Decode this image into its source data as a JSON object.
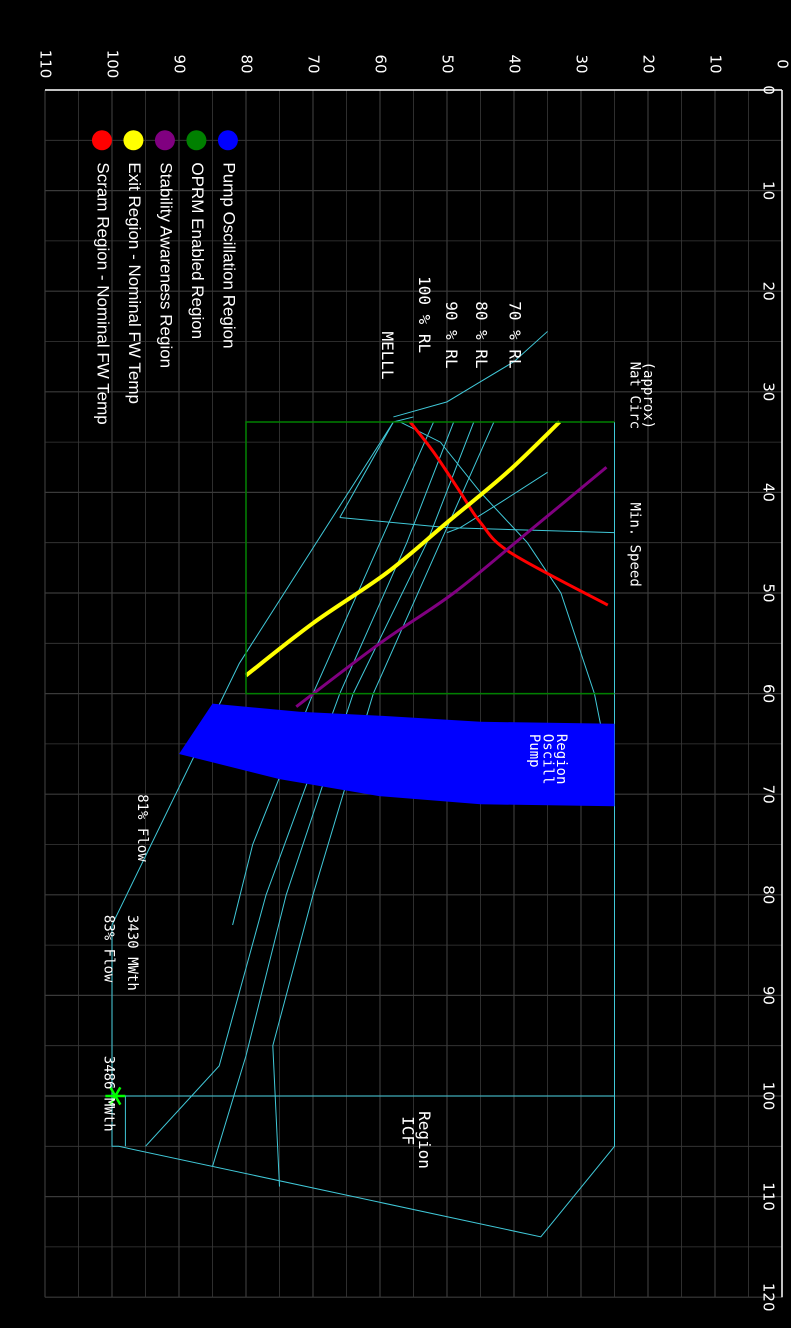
{
  "chart_data": {
    "type": "line",
    "x_axis": {
      "range": [
        0,
        120
      ],
      "ticks": [
        0,
        10,
        20,
        30,
        40,
        50,
        60,
        70,
        80,
        90,
        100,
        110,
        120
      ]
    },
    "y_axis": {
      "range": [
        0,
        110
      ],
      "ticks": [
        0,
        10,
        20,
        30,
        40,
        50,
        60,
        70,
        80,
        90,
        100,
        110
      ]
    },
    "grid": true,
    "legend_position": "top-right",
    "colors": {
      "grid": "#3a3a3a",
      "boundary": "#40c8d8",
      "scram": "#ff0000",
      "exit": "#ffff00",
      "stability": "#800080",
      "oprm": "#008000",
      "pump": "#0000ff",
      "marker": "#00ff00"
    },
    "legend": [
      {
        "label": "Scram Region - Nominal FW Temp",
        "color": "#ff0000"
      },
      {
        "label": "Exit Region - Nominal FW Temp",
        "color": "#ffff00"
      },
      {
        "label": "Stability Awareness Region",
        "color": "#800080"
      },
      {
        "label": "OPRM Enabled Region",
        "color": "#008000"
      },
      {
        "label": "Pump Oscillation Region",
        "color": "#0000ff"
      }
    ],
    "annotations": {
      "melll": "MELLL",
      "rl100": "100 % RL",
      "rl90": "90 % RL",
      "rl80": "80 % RL",
      "rl70": "70 % RL",
      "nat_circ_1": "Nat Circ",
      "nat_circ_2": "(approx)",
      "min_speed": "Min. Speed",
      "pump_1": "Pump",
      "pump_2": "Oscill",
      "pump_3": "Region",
      "icf_1": "ICF",
      "icf_2": "Region",
      "flow81": "81% Flow",
      "flow83": "83% Flow",
      "mwth3430": "3430 MWth",
      "mwth3486": "3486 MWth"
    },
    "series": [
      {
        "name": "Scram Region - Nominal FW Temp",
        "x": [
          33.0,
          36,
          40,
          43,
          46,
          51.2
        ],
        "y": [
          55.5,
          52,
          48,
          45,
          40.5,
          26
        ]
      },
      {
        "name": "Exit Region - Nominal FW Temp",
        "x": [
          33.0,
          38,
          43,
          48,
          53,
          58.2
        ],
        "y": [
          33.2,
          41,
          50,
          59,
          70,
          80
        ]
      },
      {
        "name": "Stability Awareness Region",
        "x": [
          37.5,
          44,
          50,
          55,
          61.3
        ],
        "y": [
          26.2,
          38,
          49,
          60,
          72.5
        ]
      },
      {
        "name": "OPRM Enabled Region",
        "x": [
          33.0,
          33.0,
          60.0,
          60.0
        ],
        "y": [
          25,
          80,
          80,
          25
        ]
      }
    ],
    "pump_region": {
      "x": [
        63,
        71.2
      ],
      "y": [
        25,
        85.0
      ]
    },
    "marker": {
      "x": 100,
      "y": 99.5
    }
  }
}
